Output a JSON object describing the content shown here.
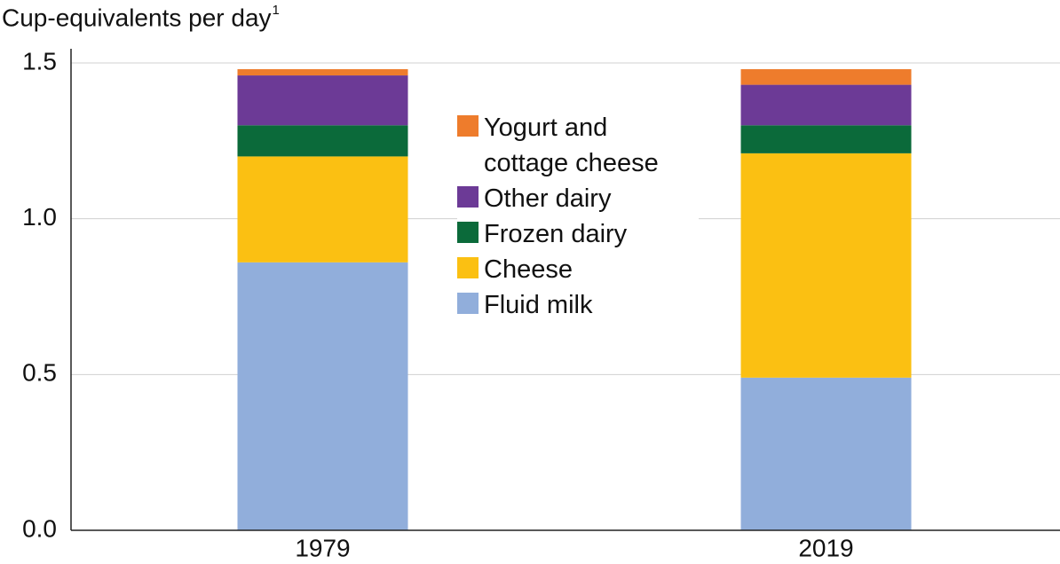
{
  "chart_data": {
    "type": "stacked-bar",
    "title": "Cup-equivalents per day",
    "title_superscript": "1",
    "categories": [
      "1979",
      "2019"
    ],
    "series": [
      {
        "name": "Fluid milk",
        "color": "#91aedb",
        "values": [
          0.86,
          0.49
        ]
      },
      {
        "name": "Cheese",
        "color": "#fbc012",
        "values": [
          0.34,
          0.72
        ]
      },
      {
        "name": "Frozen dairy",
        "color": "#0b6a3a",
        "values": [
          0.1,
          0.09
        ]
      },
      {
        "name": "Other dairy",
        "color": "#6c3a96",
        "values": [
          0.16,
          0.13
        ]
      },
      {
        "name": "Yogurt and cottage cheese",
        "color": "#ee7c2c",
        "values": [
          0.02,
          0.05
        ]
      }
    ],
    "ylim": [
      0,
      1.5
    ],
    "yticks": [
      {
        "value": 0,
        "label": "0.0"
      },
      0.5,
      {
        "value": 1,
        "label": "1.0"
      },
      1.5
    ],
    "grid": true
  }
}
